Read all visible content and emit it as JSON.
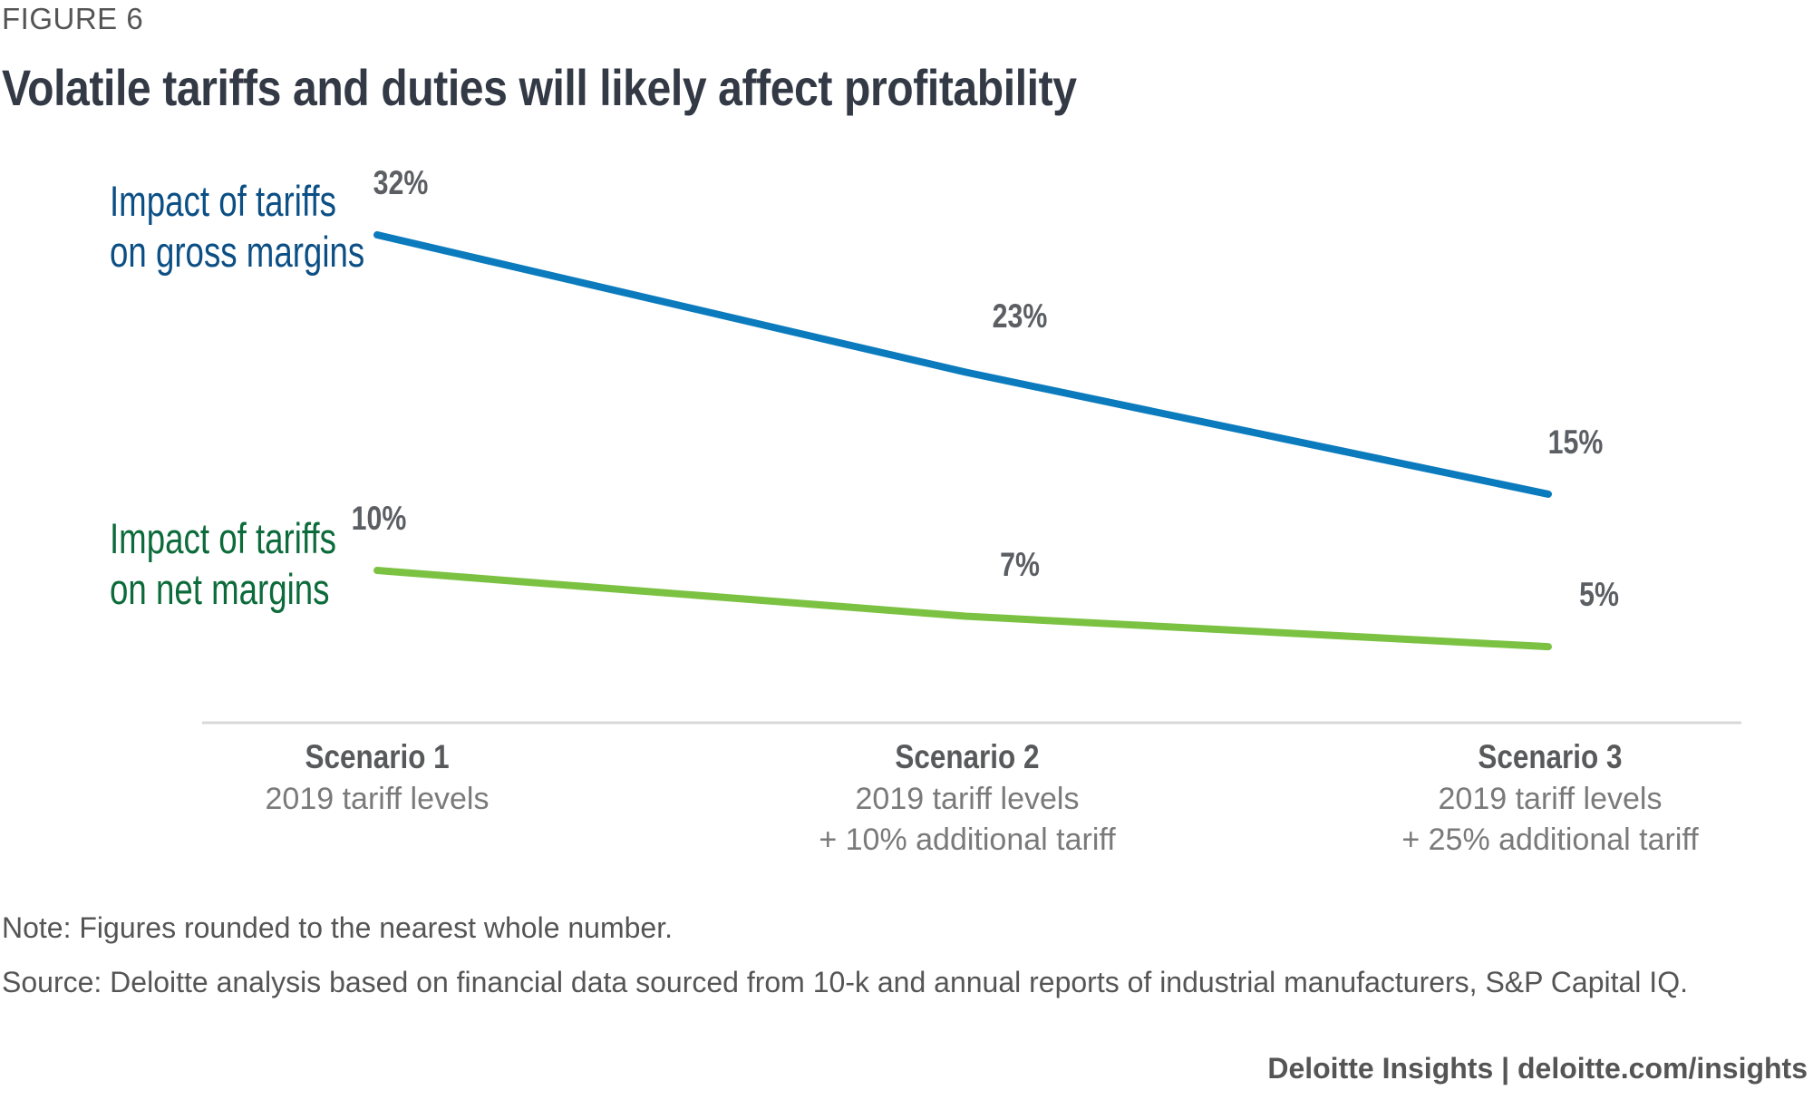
{
  "figure_label": "FIGURE 6",
  "title": "Volatile tariffs and duties will likely affect profitability",
  "chart_data": {
    "type": "line",
    "title": "Volatile tariffs and duties will likely affect profitability",
    "categories": [
      "Scenario 1",
      "Scenario 2",
      "Scenario 3"
    ],
    "category_sublabels": [
      [
        "2019 tariff levels"
      ],
      [
        "2019 tariff levels",
        "+ 10% additional tariff"
      ],
      [
        "2019 tariff levels",
        "+ 25% additional tariff"
      ]
    ],
    "series": [
      {
        "name_lines": [
          "Impact of tariffs",
          "on gross margins"
        ],
        "values": [
          32,
          23,
          15
        ],
        "labels": [
          "32%",
          "23%",
          "15%"
        ],
        "color": "#0b7bbd"
      },
      {
        "name_lines": [
          "Impact of tariffs",
          "on net margins"
        ],
        "values": [
          10,
          7,
          5
        ],
        "labels": [
          "10%",
          "7%",
          "5%"
        ],
        "color": "#7cc242"
      }
    ],
    "xlabel": "",
    "ylabel": "",
    "ylim": [
      5,
      32
    ],
    "grid": false,
    "legend": "inline-left"
  },
  "note": "Note: Figures rounded to the nearest whole number.",
  "source": "Source: Deloitte analysis based on financial data sourced from 10-k and annual reports of industrial manufacturers, S&P Capital IQ.",
  "footer": "Deloitte Insights | deloitte.com/insights"
}
